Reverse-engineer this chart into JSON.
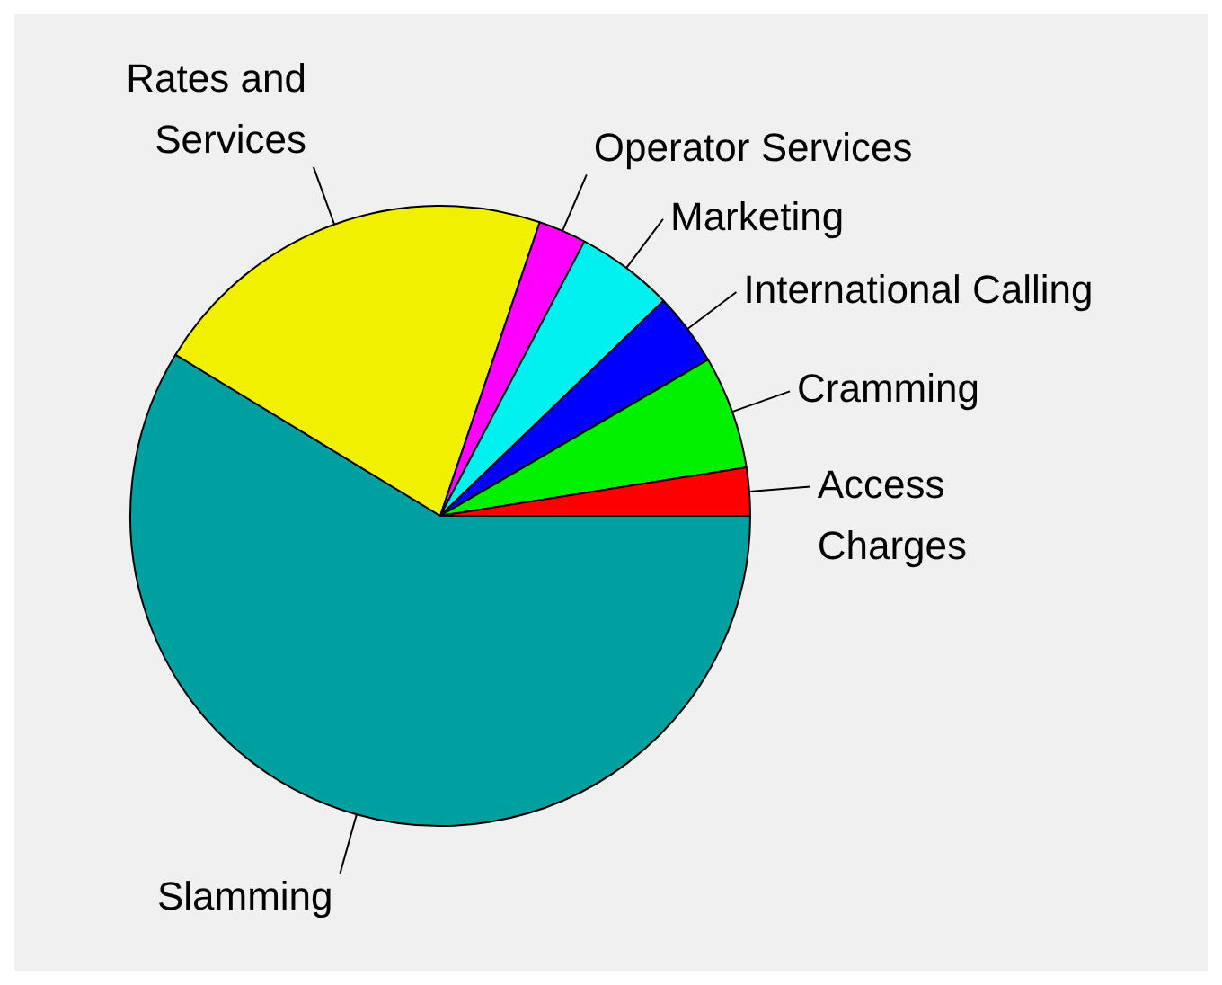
{
  "chart_data": {
    "type": "pie",
    "categories": [
      "Slamming",
      "Rates and Services",
      "Operator Services",
      "Marketing",
      "International Calling",
      "Cramming",
      "Access Charges"
    ],
    "values": [
      58.7,
      21.5,
      2.5,
      5.1,
      3.8,
      5.9,
      2.5
    ],
    "colors": [
      "#00a0a0",
      "#f0f000",
      "#ff00ff",
      "#00f0f0",
      "#0000ff",
      "#00f000",
      "#ff0000"
    ],
    "legend": false
  }
}
